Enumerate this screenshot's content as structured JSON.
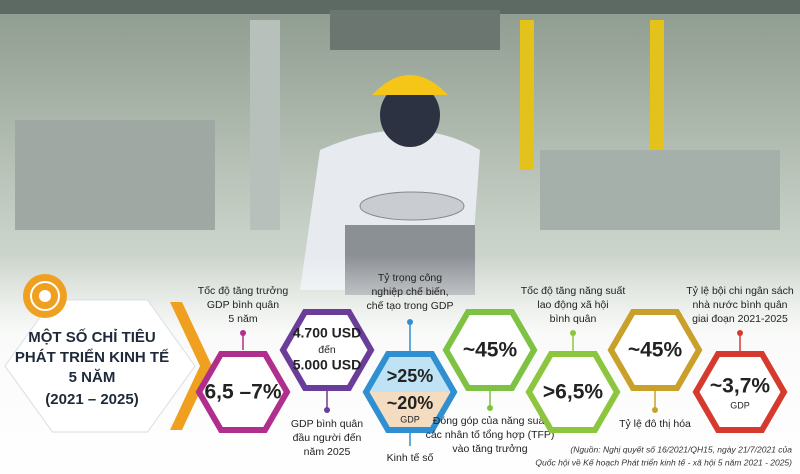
{
  "title_lines": [
    "MỘT SỐ CHỈ TIÊU",
    "PHÁT TRIỂN KINH TẾ",
    "5 NĂM",
    "(2021 – 2025)"
  ],
  "indicators": [
    {
      "value": "6,5 –7%",
      "label_lines": [
        "Tốc độ tăng trưởng",
        "GDP bình quân",
        "5 năm"
      ]
    },
    {
      "value_lines": [
        "4.700 USD",
        "đến",
        "5.000 USD"
      ],
      "label_lines": [
        "GDP bình quân",
        "đầu người đến",
        "năm 2025"
      ]
    },
    {
      "label_lines": [
        "Tỷ trọng công",
        "nghiệp chế biến,",
        "chế tạo trong GDP"
      ],
      "top_value": ">25%",
      "bottom_value": "~20%",
      "bottom_unit": "GDP",
      "caption": "Kinh tế số"
    },
    {
      "value": "~45%",
      "label_lines": [
        "Đóng góp của năng suất",
        "các nhân tố tổng hợp (TFP)",
        "vào tăng trưởng"
      ]
    },
    {
      "value": ">6,5%",
      "label_lines": [
        "Tốc độ tăng năng suất",
        "lao động xã hội",
        "bình quân"
      ]
    },
    {
      "value": "~45%",
      "label_lines": [
        "Tỷ lệ đô thị hóa"
      ]
    },
    {
      "value": "~3,7%",
      "unit": "GDP",
      "label_lines": [
        "Tỷ lệ bội chi ngân sách",
        "nhà nước bình quân",
        "giai đoạn 2021-2025"
      ]
    }
  ],
  "source_lines": [
    "(Nguồn: Nghị quyết số 16/2021/QH15, ngày 21/7/2021 của",
    "Quốc hội về Kế hoạch Phát triển kinh tế - xã hội 5 năm 2021 - 2025)"
  ]
}
